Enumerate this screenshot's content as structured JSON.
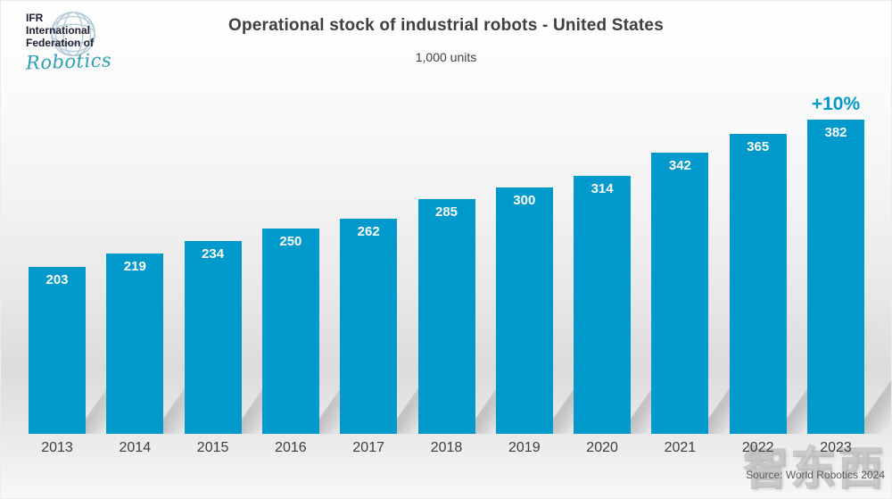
{
  "logo": {
    "line1": "IFR",
    "line2": "International",
    "line3": "Federation of",
    "script": "Robotics"
  },
  "header": {
    "title": "Operational stock of industrial robots - United States",
    "units_label": "1,000 units"
  },
  "chart_data": {
    "type": "bar",
    "title": "Operational stock of industrial robots - United States",
    "xlabel": "",
    "ylabel": "1,000 units",
    "categories": [
      "2013",
      "2014",
      "2015",
      "2016",
      "2017",
      "2018",
      "2019",
      "2020",
      "2021",
      "2022",
      "2023"
    ],
    "values": [
      203,
      219,
      234,
      250,
      262,
      285,
      300,
      314,
      342,
      365,
      382
    ],
    "ylim": [
      0,
      400
    ],
    "grid": false,
    "legend": "none",
    "bar_color": "#0099CC",
    "value_label_color": "#FFFFFF",
    "annotations": [
      {
        "text": "+10%",
        "category": "2023",
        "color": "#0099CC"
      }
    ]
  },
  "footer": {
    "source": "Source: World Robotics 2024"
  },
  "watermark": {
    "text": "智东西"
  },
  "colors": {
    "bar": "#0099CC",
    "accent_text": "#0099CC",
    "title_text": "#3F3F3F",
    "axis_text": "#3D3D3D",
    "source_text": "#595959"
  }
}
